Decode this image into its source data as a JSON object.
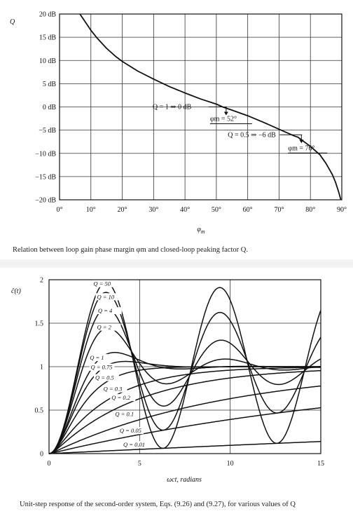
{
  "chart_data": [
    {
      "type": "line",
      "ylabel": "Q",
      "xlabel": "φm",
      "caption": "Relation between loop gain phase margin φm and closed-loop peaking factor Q.",
      "xlim": [
        0,
        90
      ],
      "ylim": [
        -20,
        20
      ],
      "x_ticks": [
        "0°",
        "10°",
        "20°",
        "30°",
        "40°",
        "50°",
        "60°",
        "70°",
        "80°",
        "90°"
      ],
      "y_ticks": [
        "20 dB",
        "15 dB",
        "10 dB",
        "5 dB",
        "0 dB",
        "−5 dB",
        "−10 dB",
        "−15 dB",
        "−20 dB"
      ],
      "grid": true,
      "series": [
        {
          "x": [
            6.5,
            8,
            10,
            12,
            15,
            18,
            20,
            25,
            30,
            35,
            40,
            45,
            50,
            52,
            55,
            60,
            65,
            70,
            75,
            76,
            80,
            83,
            85,
            87,
            88,
            89,
            89.7
          ],
          "y": [
            20,
            18.5,
            16.5,
            14.8,
            12.6,
            10.8,
            9.8,
            7.7,
            6.0,
            4.4,
            3.0,
            1.7,
            0.6,
            0,
            -0.7,
            -1.9,
            -3.3,
            -4.8,
            -6.3,
            -6.5,
            -8.5,
            -10.3,
            -12.2,
            -14.6,
            -16.2,
            -18.3,
            -20
          ]
        }
      ],
      "annotations": [
        {
          "text": "Q = 1 ⇒ 0 dB",
          "target": [
            52,
            0
          ]
        },
        {
          "text": "φm = 52°",
          "target": [
            52,
            0
          ]
        },
        {
          "text": "Q = 0.5 ⇒ −6 dB",
          "target": [
            76,
            -6
          ]
        },
        {
          "text": "φm = 76°",
          "target": [
            76,
            -6
          ]
        }
      ]
    },
    {
      "type": "line",
      "ylabel": "ĉ(t)",
      "xlabel": "ωct, radians",
      "caption": "Unit-step response of the second-order system, Eqs. (9.26) and (9.27), for various values of Q",
      "xlim": [
        0,
        15
      ],
      "ylim": [
        0,
        2
      ],
      "x_ticks": [
        "0",
        "5",
        "10",
        "15"
      ],
      "y_ticks": [
        "0",
        "0.5",
        "1",
        "1.5",
        "2"
      ],
      "grid": true,
      "series": [
        {
          "name": "Q = 50",
          "q": 50
        },
        {
          "name": "Q = 10",
          "q": 10
        },
        {
          "name": "Q = 4",
          "q": 4
        },
        {
          "name": "Q = 2",
          "q": 2
        },
        {
          "name": "Q = 1",
          "q": 1
        },
        {
          "name": "Q = 0.75",
          "q": 0.75
        },
        {
          "name": "Q = 0.5",
          "q": 0.5
        },
        {
          "name": "Q = 0.3",
          "q": 0.3
        },
        {
          "name": "Q = 0.2",
          "q": 0.2
        },
        {
          "name": "Q = 0.1",
          "q": 0.1
        },
        {
          "name": "Q = 0.05",
          "q": 0.05
        },
        {
          "name": "Q = 0.01",
          "q": 0.01
        }
      ]
    }
  ]
}
